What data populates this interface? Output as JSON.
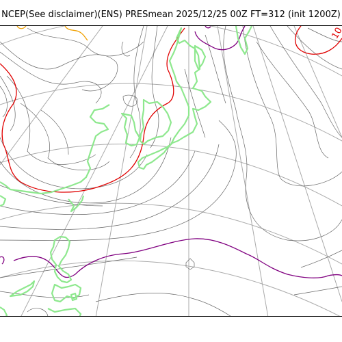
{
  "title": "NCEP(See disclaimer)(ENS) PRESmean 2025/12/25 00Z FT=312 (init 1200Z)",
  "map_label": "10",
  "colors": {
    "grid": "#aaaaaa",
    "isobar": "#666666",
    "coastline": "#8ee88e",
    "red_contour": "#e00000",
    "purple_contour": "#800080",
    "orange_contour": "#f0a000"
  }
}
